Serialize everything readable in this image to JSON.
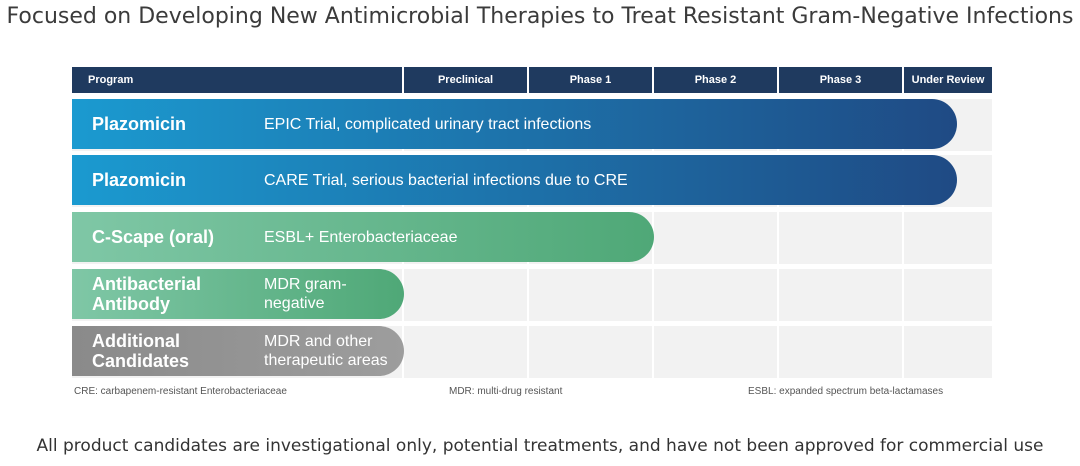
{
  "title": "Focused on Developing New Antimicrobial Therapies to Treat Resistant Gram-Negative Infections",
  "chart_data": {
    "type": "bar",
    "columns": [
      "Program",
      "Preclinical",
      "Phase 1",
      "Phase 2",
      "Phase 3",
      "Under Review"
    ],
    "stages": [
      "Preclinical",
      "Phase 1",
      "Phase 2",
      "Phase 3",
      "Under Review"
    ],
    "rows": [
      {
        "program": "Plazomicin",
        "description": "EPIC Trial, complicated urinary tract infections",
        "progress_stage": "Under Review",
        "progress_fraction_of_stage": 0.6,
        "colors": [
          "#1b9ad0",
          "#1f4a84"
        ]
      },
      {
        "program": "Plazomicin",
        "description": "CARE Trial, serious bacterial infections due to CRE",
        "progress_stage": "Under Review",
        "progress_fraction_of_stage": 0.6,
        "colors": [
          "#1b9ad0",
          "#1f4a84"
        ]
      },
      {
        "program": "C-Scape (oral)",
        "description": "ESBL+ Enterobacteriaceae",
        "progress_stage": "Phase 2",
        "progress_fraction_of_stage": 0.0,
        "colors": [
          "#7fc7a6",
          "#4fa877"
        ]
      },
      {
        "program": "Antibacterial Antibody",
        "description": "MDR gram-negative",
        "progress_stage": "Preclinical",
        "progress_fraction_of_stage": 0.0,
        "colors": [
          "#7fc7a6",
          "#4fa877"
        ]
      },
      {
        "program": "Additional Candidates",
        "description": "MDR and other therapeutic areas",
        "progress_stage": "Preclinical",
        "progress_fraction_of_stage": 0.0,
        "colors": [
          "#8a8a8a",
          "#9d9d9d"
        ]
      }
    ]
  },
  "footnotes": {
    "cre": "CRE: carbapenem-resistant Enterobacteriaceae",
    "mdr": "MDR: multi-drug resistant",
    "esbl": "ESBL: expanded spectrum beta-lactamases"
  },
  "disclaimer": "All product candidates are investigational only, potential treatments, and have not been approved for commercial use"
}
